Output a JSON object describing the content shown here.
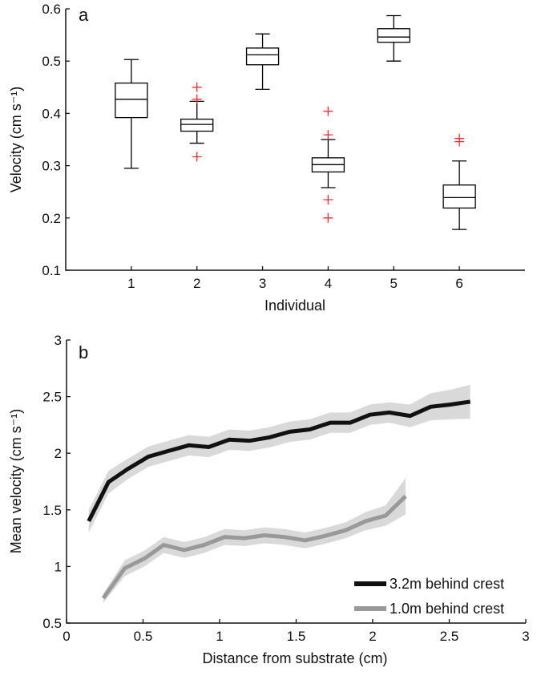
{
  "chart_data": [
    {
      "type": "box",
      "panel_label": "a",
      "xlabel": "Individual",
      "ylabel": "Velocity (cm s⁻¹)",
      "categories": [
        "1",
        "2",
        "3",
        "4",
        "5",
        "6"
      ],
      "xlim": [
        0,
        7
      ],
      "ylim": [
        0.1,
        0.6
      ],
      "yticks": [
        0.1,
        0.2,
        0.3,
        0.4,
        0.5,
        0.6
      ],
      "box_color": "#000000",
      "outlier_color": "#ff2a2a",
      "boxes": [
        {
          "whisker_low": 0.295,
          "q1": 0.392,
          "median": 0.427,
          "q3": 0.458,
          "whisker_high": 0.503,
          "outliers": []
        },
        {
          "whisker_low": 0.343,
          "q1": 0.366,
          "median": 0.379,
          "q3": 0.389,
          "whisker_high": 0.423,
          "outliers": [
            0.45,
            0.427,
            0.317
          ]
        },
        {
          "whisker_low": 0.446,
          "q1": 0.493,
          "median": 0.512,
          "q3": 0.525,
          "whisker_high": 0.552,
          "outliers": []
        },
        {
          "whisker_low": 0.258,
          "q1": 0.288,
          "median": 0.302,
          "q3": 0.315,
          "whisker_high": 0.35,
          "outliers": [
            0.404,
            0.359,
            0.235,
            0.2
          ]
        },
        {
          "whisker_low": 0.5,
          "q1": 0.536,
          "median": 0.546,
          "q3": 0.562,
          "whisker_high": 0.587,
          "outliers": []
        },
        {
          "whisker_low": 0.178,
          "q1": 0.219,
          "median": 0.239,
          "q3": 0.263,
          "whisker_high": 0.309,
          "outliers": [
            0.352,
            0.346
          ]
        }
      ]
    },
    {
      "type": "line",
      "panel_label": "b",
      "xlabel": "Distance from substrate (cm)",
      "ylabel": "Mean velocity (cm s⁻¹)",
      "xlim": [
        0,
        3
      ],
      "ylim": [
        0.5,
        3
      ],
      "xticks": [
        0,
        0.5,
        1,
        1.5,
        2,
        2.5,
        3
      ],
      "yticks": [
        0.5,
        1,
        1.5,
        2,
        2.5,
        3
      ],
      "legend_position": "bottom-right",
      "band_color": "#d9d9d9",
      "series": [
        {
          "name": "3.2m behind crest",
          "color": "#111111",
          "x": [
            0.145,
            0.274,
            0.399,
            0.535,
            0.665,
            0.799,
            0.929,
            1.063,
            1.195,
            1.325,
            1.459,
            1.589,
            1.723,
            1.853,
            1.982,
            2.108,
            2.244,
            2.378,
            2.507,
            2.637
          ],
          "y": [
            1.4,
            1.745,
            1.86,
            1.97,
            2.02,
            2.07,
            2.055,
            2.12,
            2.11,
            2.14,
            2.19,
            2.21,
            2.27,
            2.27,
            2.34,
            2.36,
            2.33,
            2.41,
            2.43,
            2.455
          ],
          "band_halfwidth": [
            0.1,
            0.1,
            0.09,
            0.09,
            0.09,
            0.09,
            0.09,
            0.09,
            0.09,
            0.09,
            0.09,
            0.09,
            0.09,
            0.09,
            0.09,
            0.09,
            0.1,
            0.12,
            0.13,
            0.15
          ]
        },
        {
          "name": "1.0m behind crest",
          "color": "#999999",
          "x": [
            0.24,
            0.38,
            0.509,
            0.635,
            0.769,
            0.899,
            1.033,
            1.163,
            1.293,
            1.425,
            1.559,
            1.689,
            1.823,
            1.953,
            2.085,
            2.215
          ],
          "y": [
            0.72,
            0.984,
            1.07,
            1.19,
            1.145,
            1.19,
            1.26,
            1.25,
            1.275,
            1.26,
            1.23,
            1.27,
            1.32,
            1.4,
            1.45,
            1.62
          ],
          "band_halfwidth": [
            0.04,
            0.07,
            0.07,
            0.07,
            0.07,
            0.07,
            0.07,
            0.07,
            0.07,
            0.07,
            0.07,
            0.07,
            0.07,
            0.08,
            0.09,
            0.16
          ]
        }
      ]
    }
  ]
}
